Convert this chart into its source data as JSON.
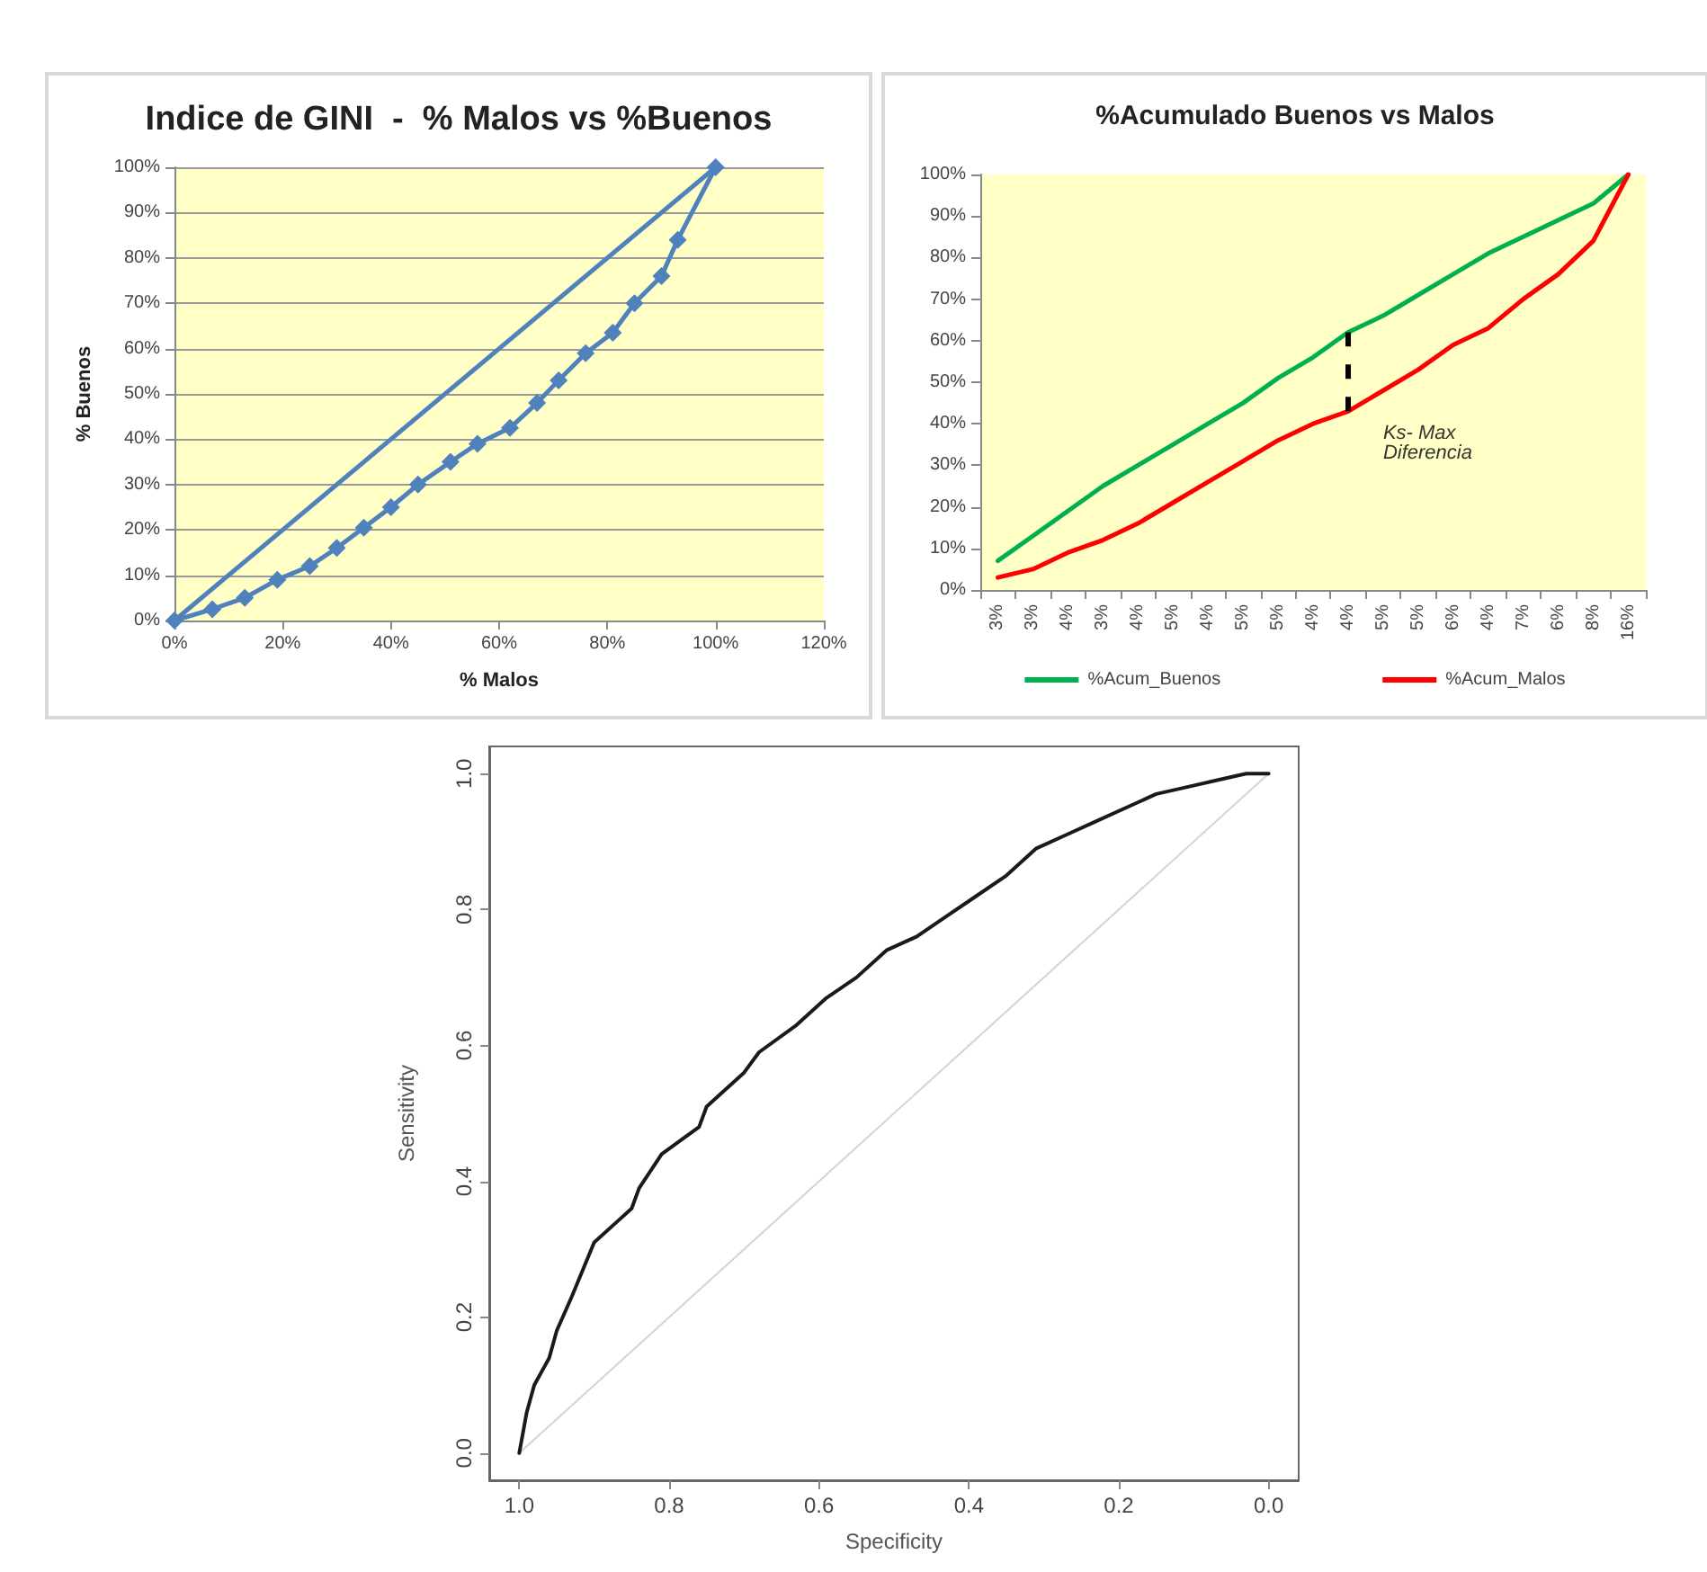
{
  "chart_data": [
    {
      "type": "line",
      "title": "Indice de GINI  -  % Malos vs %Buenos",
      "xlabel": "% Malos",
      "ylabel": "% Buenos",
      "marker": "diamond",
      "grid": "y",
      "xlim": [
        0,
        120
      ],
      "xticks": [
        {
          "value": 0,
          "label": "0%"
        },
        {
          "value": 20,
          "label": "20%"
        },
        {
          "value": 40,
          "label": "40%"
        },
        {
          "value": 60,
          "label": "60%"
        },
        {
          "value": 80,
          "label": "80%"
        },
        {
          "value": 100,
          "label": "100%"
        },
        {
          "value": 120,
          "label": "120%"
        }
      ],
      "ylim": [
        0,
        100
      ],
      "yticks": [
        {
          "value": 0,
          "label": "0%"
        },
        {
          "value": 10,
          "label": "10%"
        },
        {
          "value": 20,
          "label": "20%"
        },
        {
          "value": 30,
          "label": "30%"
        },
        {
          "value": 40,
          "label": "40%"
        },
        {
          "value": 50,
          "label": "50%"
        },
        {
          "value": 60,
          "label": "60%"
        },
        {
          "value": 70,
          "label": "70%"
        },
        {
          "value": 80,
          "label": "80%"
        },
        {
          "value": 90,
          "label": "90%"
        },
        {
          "value": 100,
          "label": "100%"
        }
      ],
      "series": [
        {
          "color": "#4f81bd",
          "x": [
            0,
            7,
            13,
            19,
            25,
            30,
            35,
            40,
            45,
            51,
            56,
            62,
            67,
            71,
            76,
            81,
            85,
            90,
            93,
            100
          ],
          "values": [
            0,
            2.5,
            5,
            9,
            12,
            16,
            20.5,
            25,
            30,
            35,
            39,
            42.5,
            48,
            53,
            59,
            63.5,
            70,
            76,
            84,
            100
          ]
        },
        {
          "color": "#4f81bd",
          "marker": "none",
          "x": [
            0,
            100
          ],
          "values": [
            0,
            100
          ]
        }
      ]
    },
    {
      "type": "line",
      "title": "%Acumulado Buenos vs Malos",
      "legend": "bottom",
      "marker": "none",
      "categories": [
        "3%",
        "3%",
        "4%",
        "3%",
        "4%",
        "5%",
        "4%",
        "5%",
        "5%",
        "4%",
        "4%",
        "5%",
        "5%",
        "6%",
        "4%",
        "7%",
        "6%",
        "8%",
        "16%"
      ],
      "ylim": [
        0,
        100
      ],
      "yticks": [
        {
          "value": 0,
          "label": "0%"
        },
        {
          "value": 10,
          "label": "10%"
        },
        {
          "value": 20,
          "label": "20%"
        },
        {
          "value": 30,
          "label": "30%"
        },
        {
          "value": 40,
          "label": "40%"
        },
        {
          "value": 50,
          "label": "50%"
        },
        {
          "value": 60,
          "label": "60%"
        },
        {
          "value": 70,
          "label": "70%"
        },
        {
          "value": 80,
          "label": "80%"
        },
        {
          "value": 90,
          "label": "90%"
        },
        {
          "value": 100,
          "label": "100%"
        }
      ],
      "annotations": [
        "Ks- Max Diferencia"
      ],
      "series": [
        {
          "name": "%Acum_Buenos",
          "color": "#00b050",
          "values": [
            7,
            13,
            19,
            25,
            30,
            35,
            40,
            45,
            51,
            56,
            62,
            66,
            71,
            76,
            81,
            85,
            89,
            93,
            100
          ]
        },
        {
          "name": "%Acum_Malos",
          "color": "#ff0000",
          "values": [
            3,
            5,
            9,
            12,
            16,
            21,
            26,
            31,
            36,
            40,
            43,
            48,
            53,
            59,
            63,
            70,
            76,
            84,
            100
          ],
          "errors": [
            null,
            null,
            null,
            null,
            null,
            null,
            null,
            null,
            null,
            null,
            [
              43,
              62
            ],
            null,
            null,
            null,
            null,
            null,
            null,
            null,
            null
          ]
        }
      ]
    },
    {
      "type": "line",
      "xlabel": "Specificity",
      "ylabel": "Sensitivity",
      "marker": "none",
      "xlim": [
        1.04,
        -0.04
      ],
      "xticks": [
        {
          "value": 1,
          "label": "1.0"
        },
        0.8,
        0.6,
        0.4,
        0.2,
        {
          "value": 0,
          "label": "0.0"
        }
      ],
      "ylim": [
        -0.04,
        1.04
      ],
      "yticks": [
        {
          "value": 0,
          "label": "0.0"
        },
        0.2,
        0.4,
        0.6,
        0.8,
        {
          "value": 1,
          "label": "1.0"
        }
      ],
      "series": [
        {
          "color": "#d3d3d3",
          "x": [
            1,
            0
          ],
          "values": [
            0,
            1
          ]
        },
        {
          "color": "#1a1a1a",
          "x": [
            1,
            0.99,
            0.98,
            0.96,
            0.95,
            0.93,
            0.9,
            0.87,
            0.85,
            0.84,
            0.81,
            0.76,
            0.75,
            0.7,
            0.68,
            0.63,
            0.59,
            0.55,
            0.51,
            0.47,
            0.43,
            0.39,
            0.35,
            0.31,
            0.27,
            0.23,
            0.19,
            0.15,
            0.11,
            0.07,
            0.03,
            0
          ],
          "values": [
            0,
            0.06,
            0.1,
            0.14,
            0.18,
            0.23,
            0.31,
            0.34,
            0.36,
            0.39,
            0.44,
            0.48,
            0.51,
            0.56,
            0.59,
            0.63,
            0.67,
            0.7,
            0.74,
            0.76,
            0.79,
            0.82,
            0.85,
            0.89,
            0.91,
            0.93,
            0.95,
            0.97,
            0.98,
            0.99,
            1,
            1
          ]
        }
      ]
    }
  ]
}
